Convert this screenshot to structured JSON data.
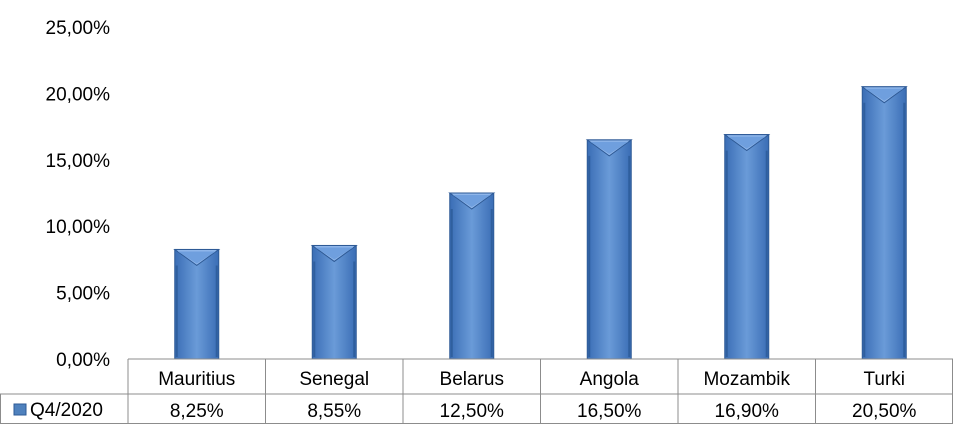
{
  "chart_data": {
    "type": "bar",
    "title": "",
    "xlabel": "",
    "ylabel": "",
    "categories": [
      "Mauritius",
      "Senegal",
      "Belarus",
      "Angola",
      "Mozambik",
      "Turki"
    ],
    "series": [
      {
        "name": "Q4/2020",
        "values": [
          8.25,
          8.55,
          12.5,
          16.5,
          16.9,
          20.5
        ],
        "labels": [
          "8,25%",
          "8,55%",
          "12,50%",
          "16,50%",
          "16,90%",
          "20,50%"
        ],
        "color": "#4f81bd"
      }
    ],
    "ylim": [
      0,
      25
    ],
    "yticks": [
      0,
      5,
      10,
      15,
      20,
      25
    ],
    "ytick_labels": [
      "0,00%",
      "5,00%",
      "10,00%",
      "15,00%",
      "20,00%",
      "25,00%"
    ],
    "grid": false,
    "legend": "data-table-left",
    "bar_style": "3d-pyramid-capped-column"
  }
}
